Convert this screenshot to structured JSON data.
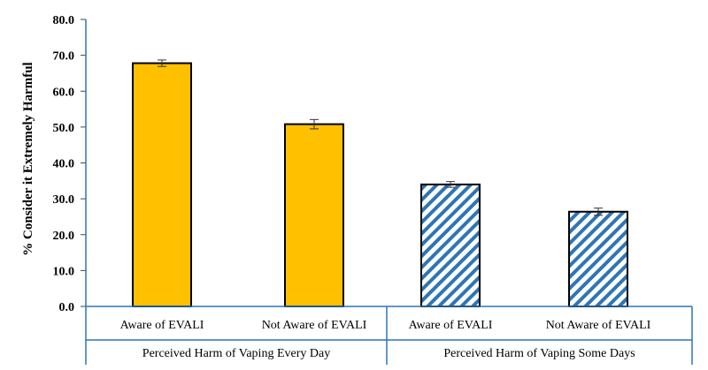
{
  "chart_data": {
    "type": "bar",
    "title": "",
    "xlabel": "",
    "ylabel": "% Consider it Extremely Harmful",
    "ylim": [
      0,
      80
    ],
    "yticks": [
      "0.0",
      "10.0",
      "20.0",
      "30.0",
      "40.0",
      "50.0",
      "60.0",
      "70.0",
      "80.0"
    ],
    "grid": false,
    "groups": [
      {
        "label": "Perceived Harm of Vaping Every Day",
        "pattern": "solid",
        "fill": "#FFC000",
        "bars": [
          {
            "category": "Aware of EVALI",
            "value": 67.8,
            "error": 0.9
          },
          {
            "category": "Not Aware of EVALI",
            "value": 50.8,
            "error": 1.3
          }
        ]
      },
      {
        "label": "Perceived Harm of Vaping Some Days",
        "pattern": "diagonal-stripes",
        "fill": "#2E75B6",
        "bars": [
          {
            "category": "Aware of EVALI",
            "value": 34.0,
            "error": 0.8
          },
          {
            "category": "Not Aware of EVALI",
            "value": 26.4,
            "error": 1.0
          }
        ]
      }
    ],
    "colors": {
      "axis": "#2E75B6",
      "bar_outline": "#000000",
      "stripe_bg": "#ffffff",
      "error_bar": "#333333"
    }
  }
}
